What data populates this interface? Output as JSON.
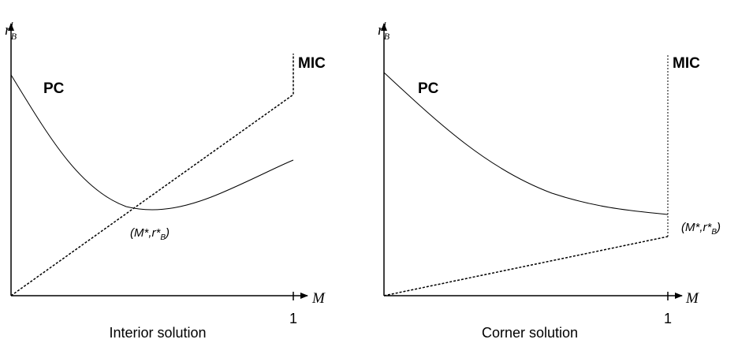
{
  "panels": [
    {
      "y_label": {
        "base": "r",
        "sup": "l",
        "sub": "B"
      },
      "x_label": "M",
      "x_tick": "1",
      "curve_labels": [
        "PC",
        "MIC"
      ],
      "point_label": {
        "main": "(M*,r*",
        "sub": "B",
        "close": ")"
      },
      "caption": "Interior solution"
    },
    {
      "y_label": {
        "base": "r",
        "sup": "l",
        "sub": "B"
      },
      "x_label": "M",
      "x_tick": "1",
      "curve_labels": [
        "PC",
        "MIC"
      ],
      "point_label": {
        "main": "(M*,r*",
        "sub": "B",
        "close": ")"
      },
      "caption": "Corner solution"
    }
  ]
}
